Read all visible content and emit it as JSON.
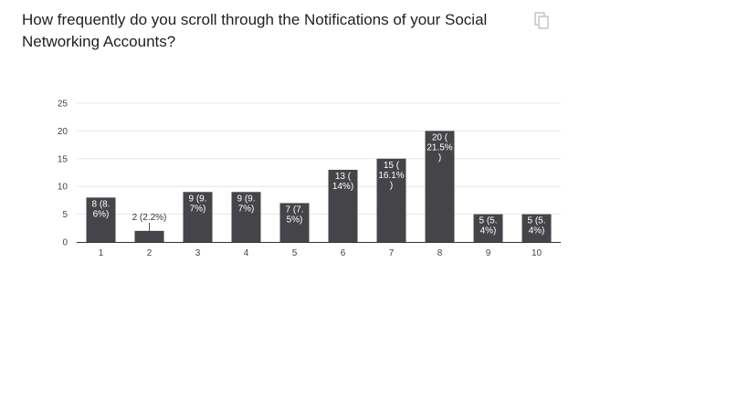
{
  "question": {
    "title": "How frequently do you scroll through the Notifications of your Social Networking Accounts?"
  },
  "toolbar": {
    "copy_icon": "copy-icon"
  },
  "chart_data": {
    "type": "bar",
    "categories": [
      "1",
      "2",
      "3",
      "4",
      "5",
      "6",
      "7",
      "8",
      "9",
      "10"
    ],
    "values": [
      8,
      2,
      9,
      9,
      7,
      13,
      15,
      20,
      5,
      5
    ],
    "data_labels": [
      [
        "8 (8.",
        "6%)"
      ],
      [
        "2 (2.2%)"
      ],
      [
        "9 (9.",
        "7%)"
      ],
      [
        "9 (9.",
        "7%)"
      ],
      [
        "7 (7.",
        "5%)"
      ],
      [
        "13 (",
        "14%)"
      ],
      [
        "15 (",
        "16.1%",
        ")"
      ],
      [
        "20 (",
        "21.5%",
        ")"
      ],
      [
        "5 (5.",
        "4%)"
      ],
      [
        "5 (5.",
        "4%)"
      ]
    ],
    "y_ticks": [
      "0",
      "5",
      "10",
      "15",
      "20",
      "25"
    ],
    "ylim": [
      0,
      25
    ],
    "grid": true,
    "legend": "none",
    "bar_color": "#454549",
    "label_color_inside": "#ffffff",
    "label_color_outside": "#333333",
    "grid_color": "#e6e6e6",
    "axis_color": "#333333"
  }
}
